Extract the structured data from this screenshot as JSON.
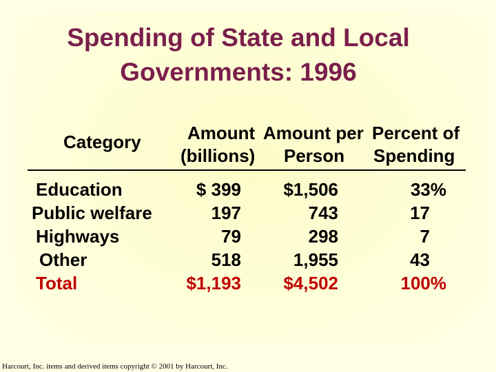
{
  "title": {
    "line1": "Spending of State and Local",
    "line2": "Governments: 1996"
  },
  "table": {
    "headers": {
      "category": "Category",
      "amount_line1": "Amount",
      "amount_line2": "(billions)",
      "per_person_line1": "Amount per",
      "per_person_line2": "Person",
      "percent_line1": "Percent of",
      "percent_line2": "Spending"
    },
    "rows": [
      {
        "category": "Education",
        "amount": "$  399",
        "per_person": "$1,506",
        "percent": "33%"
      },
      {
        "category": "Public welfare",
        "amount": "197",
        "per_person": "743",
        "percent": "17"
      },
      {
        "category": "Highways",
        "amount": "79",
        "per_person": "298",
        "percent": "7"
      },
      {
        "category": "Other",
        "amount": "518",
        "per_person": "1,955",
        "percent": "43"
      },
      {
        "category": "Total",
        "amount": "$1,193",
        "per_person": "$4,502",
        "percent": "100%"
      }
    ]
  },
  "footer": "Harcourt, Inc. items and derived items copyright © 2001 by Harcourt, Inc.",
  "colors": {
    "title": "#7a1f4c",
    "total_row": "#c00000",
    "background": "#ffffe6"
  }
}
